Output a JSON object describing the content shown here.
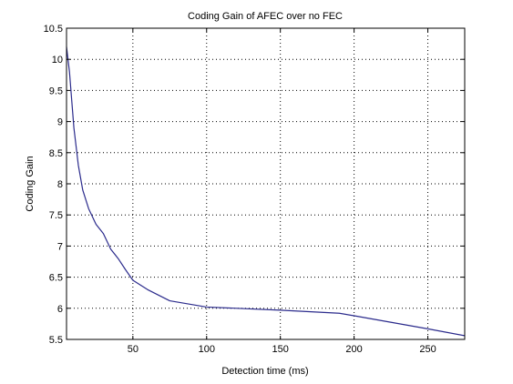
{
  "chart_data": {
    "type": "line",
    "title": "Coding Gain of AFEC over no FEC",
    "xlabel": "Detection time (ms)",
    "ylabel": "Coding Gain",
    "xlim": [
      5,
      275
    ],
    "ylim": [
      5.5,
      10.5
    ],
    "xticks": [
      50,
      100,
      150,
      200,
      250
    ],
    "yticks": [
      5.5,
      6,
      6.5,
      7,
      7.5,
      8,
      8.5,
      9,
      9.5,
      10,
      10.5
    ],
    "grid": true,
    "line_color": "#2b2b8c",
    "series": [
      {
        "x": [
          5,
          7,
          10,
          13,
          16,
          20,
          25,
          30,
          35,
          40,
          45,
          50,
          60,
          75,
          100,
          150,
          190,
          200,
          250,
          275
        ],
        "y": [
          10.2,
          9.8,
          8.9,
          8.3,
          7.9,
          7.6,
          7.35,
          7.2,
          6.95,
          6.8,
          6.62,
          6.45,
          6.3,
          6.12,
          6.02,
          5.97,
          5.92,
          5.88,
          5.67,
          5.56
        ]
      }
    ]
  }
}
